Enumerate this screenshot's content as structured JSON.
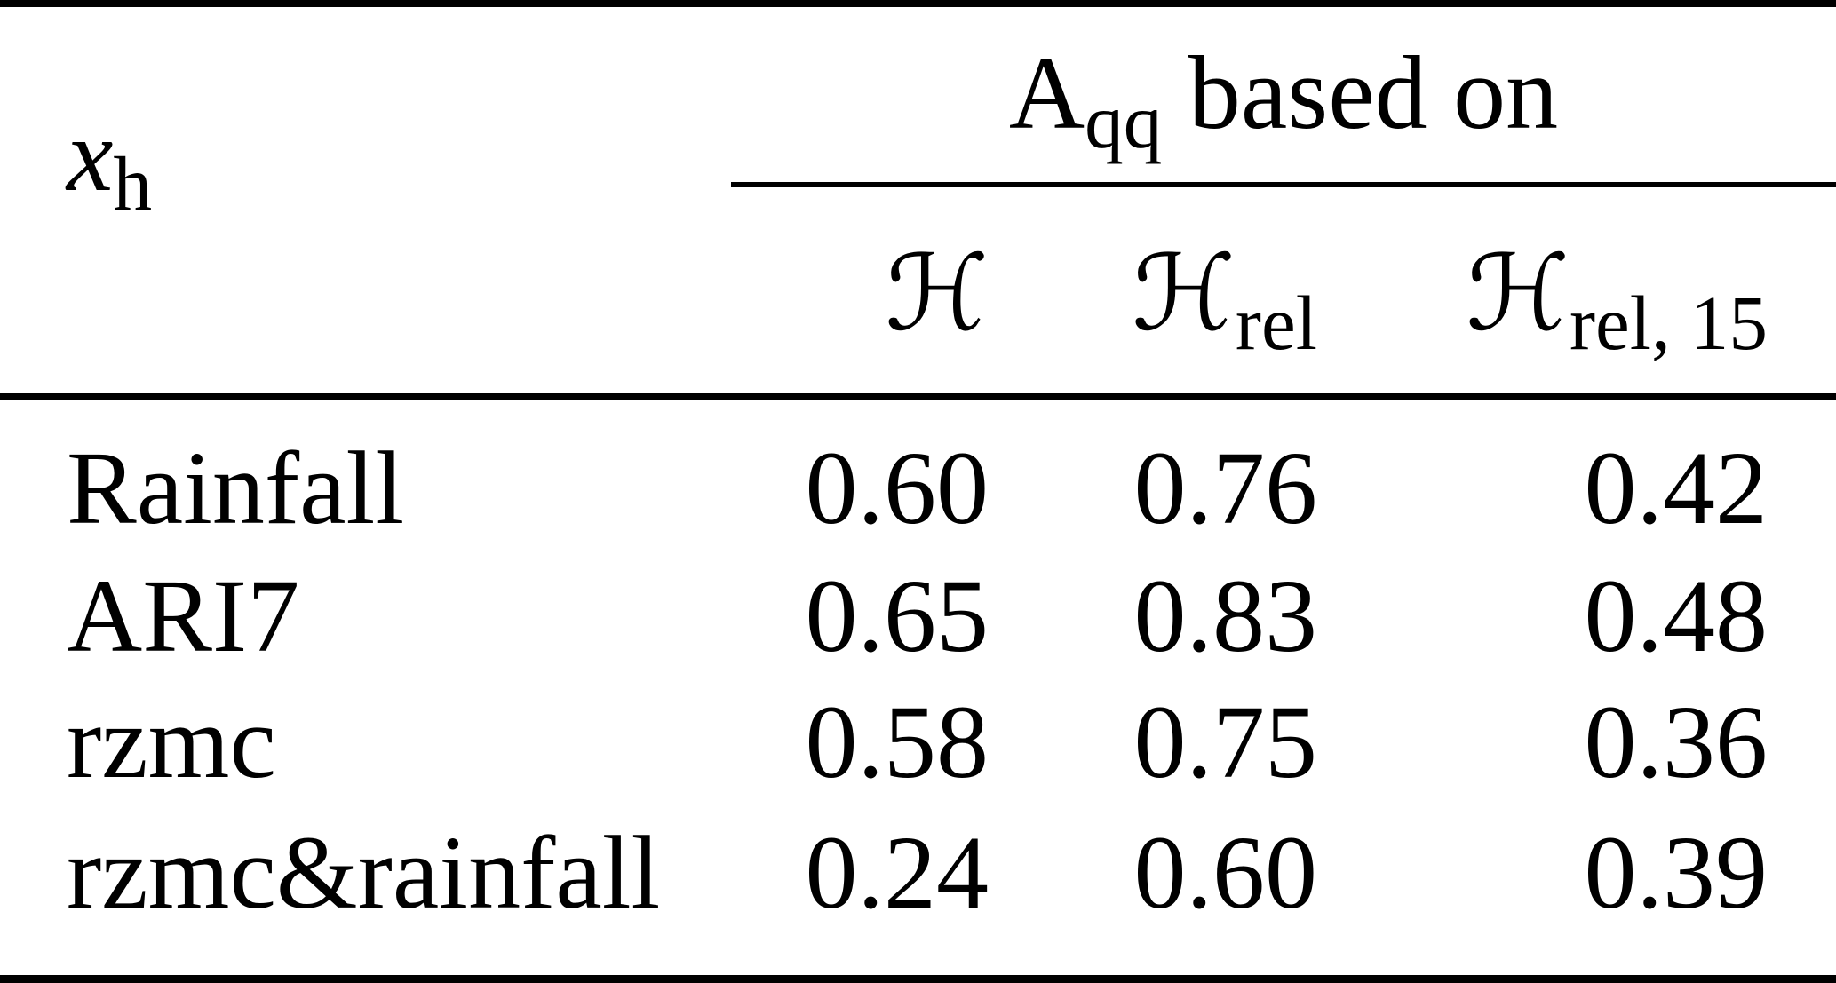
{
  "table": {
    "corner_header": {
      "base": "x",
      "subscript": "h"
    },
    "column_group_header": {
      "base": "A",
      "subscript": "qq",
      "suffix": "based on"
    },
    "column_headers": [
      {
        "symbol": "ℋ",
        "subscript": ""
      },
      {
        "symbol": "ℋ",
        "subscript": "rel"
      },
      {
        "symbol": "ℋ",
        "subscript": "rel, 15"
      }
    ],
    "rows": [
      {
        "label": "Rainfall",
        "values": [
          "0.60",
          "0.76",
          "0.42"
        ]
      },
      {
        "label": "ARI7",
        "values": [
          "0.65",
          "0.83",
          "0.48"
        ]
      },
      {
        "label": "rzmc",
        "values": [
          "0.58",
          "0.75",
          "0.36"
        ]
      },
      {
        "label": "rzmc&rainfall",
        "values": [
          "0.24",
          "0.60",
          "0.39"
        ]
      }
    ]
  }
}
